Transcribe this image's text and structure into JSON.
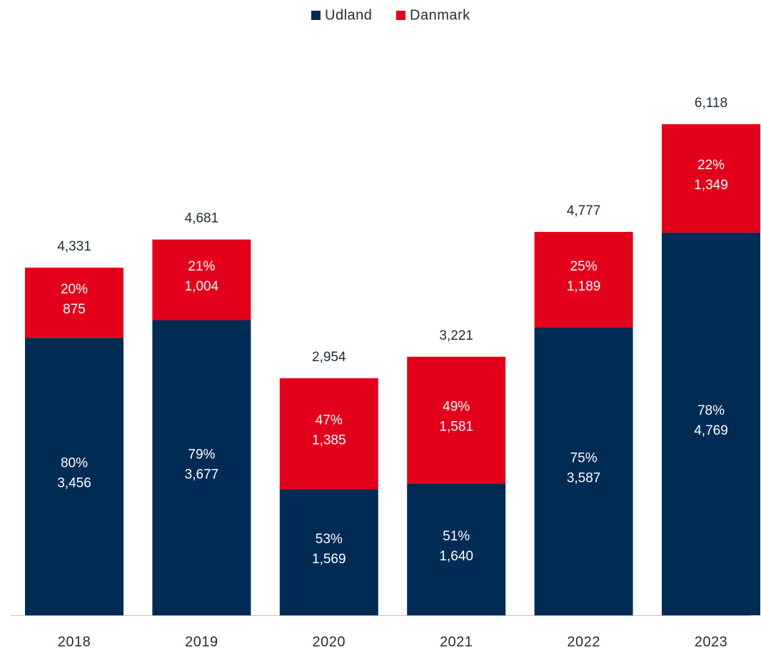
{
  "chart_data": {
    "type": "stacked_bar",
    "categories": [
      "2018",
      "2019",
      "2020",
      "2021",
      "2022",
      "2023"
    ],
    "series": [
      {
        "name": "Udland",
        "color": "#002b55",
        "values": [
          3456,
          3677,
          1569,
          1640,
          3587,
          4769
        ],
        "value_labels": [
          "3,456",
          "3,677",
          "1,569",
          "1,640",
          "3,587",
          "4,769"
        ],
        "share_labels": [
          "80%",
          "79%",
          "53%",
          "51%",
          "75%",
          "78%"
        ]
      },
      {
        "name": "Danmark",
        "color": "#e3001b",
        "values": [
          875,
          1004,
          1385,
          1581,
          1189,
          1349
        ],
        "value_labels": [
          "875",
          "1,004",
          "1,385",
          "1,581",
          "1,189",
          "1,349"
        ],
        "share_labels": [
          "20%",
          "21%",
          "47%",
          "49%",
          "25%",
          "22%"
        ]
      }
    ],
    "totals": [
      4331,
      4681,
      2954,
      3221,
      4777,
      6118
    ],
    "total_labels": [
      "4,331",
      "4,681",
      "2,954",
      "3,221",
      "4,777",
      "6,118"
    ],
    "ylim": [
      0,
      6500
    ],
    "legend": "top"
  }
}
